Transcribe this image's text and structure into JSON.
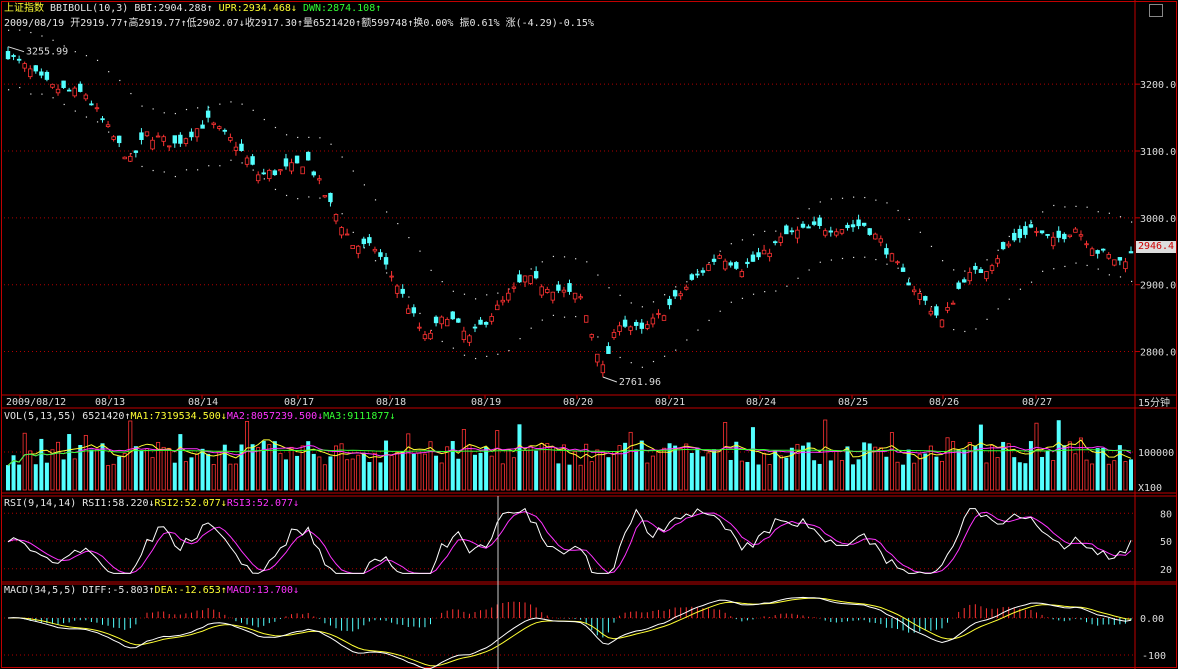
{
  "header": {
    "index_name": "上证指数",
    "indicator": "BBIBOLL(10,3)",
    "bbi": "BBI:2904.288",
    "upr": "UPR:2934.468",
    "dwn": "DWN:2874.108",
    "date": "2009/08/19",
    "open": "开2919.77",
    "high": "高2919.77",
    "low": "低2902.07",
    "close": "收2917.30",
    "volume": "量6521420",
    "amount": "额599748",
    "turnover": "换0.00%",
    "amplitude": "振0.61%",
    "change": "涨(-4.29)-0.15%"
  },
  "vol_header": {
    "name": "VOL(5,13,55)",
    "value": "6521420",
    "ma1": "MA1:7319534.500",
    "ma2": "MA2:8057239.500",
    "ma3": "MA3:9111877"
  },
  "rsi_header": {
    "name": "RSI(9,14,14)",
    "rsi1": "RSI1:58.220",
    "rsi2": "RSI2:52.077",
    "rsi3": "RSI3:52.077"
  },
  "macd_header": {
    "name": "MACD(34,5,5)",
    "diff": "DIFF:-5.803",
    "dea": "DEA:-12.653",
    "macd": "MACD:13.700"
  },
  "last_price_tag": "2946.4",
  "period_label": "15分钟",
  "chart_data": {
    "type": "candlestick",
    "price_axis": {
      "ticks": [
        3200,
        3100,
        3000,
        2900,
        2800
      ],
      "tick_labels": [
        "3200.0",
        "3100.0",
        "3000.0",
        "2900.0",
        "2800.0"
      ],
      "ylim": [
        2735,
        3275
      ]
    },
    "date_labels": [
      "2009/08/12",
      "08/13",
      "08/14",
      "08/17",
      "08/18",
      "08/19",
      "08/20",
      "08/21",
      "08/24",
      "08/25",
      "08/26",
      "08/27"
    ],
    "annotations": [
      {
        "label": "3255.99",
        "price": 3255.99
      },
      {
        "label": "2761.96",
        "price": 2761.96
      }
    ],
    "price_anchors": [
      [
        0,
        3245
      ],
      [
        8,
        3195
      ],
      [
        14,
        3185
      ],
      [
        19,
        3120
      ],
      [
        22,
        3085
      ],
      [
        25,
        3125
      ],
      [
        30,
        3110
      ],
      [
        36,
        3145
      ],
      [
        41,
        3110
      ],
      [
        45,
        3065
      ],
      [
        49,
        3070
      ],
      [
        54,
        3085
      ],
      [
        57,
        3035
      ],
      [
        62,
        2960
      ],
      [
        66,
        2955
      ],
      [
        70,
        2900
      ],
      [
        75,
        2820
      ],
      [
        79,
        2855
      ],
      [
        83,
        2820
      ],
      [
        88,
        2865
      ],
      [
        93,
        2910
      ],
      [
        98,
        2895
      ],
      [
        103,
        2880
      ],
      [
        107,
        2775
      ],
      [
        110,
        2845
      ],
      [
        114,
        2830
      ],
      [
        118,
        2860
      ],
      [
        123,
        2905
      ],
      [
        128,
        2945
      ],
      [
        132,
        2925
      ],
      [
        136,
        2945
      ],
      [
        140,
        2975
      ],
      [
        145,
        2985
      ],
      [
        150,
        2985
      ],
      [
        154,
        2990
      ],
      [
        157,
        2965
      ],
      [
        161,
        2915
      ],
      [
        165,
        2875
      ],
      [
        168,
        2845
      ],
      [
        172,
        2910
      ],
      [
        176,
        2925
      ],
      [
        180,
        2960
      ],
      [
        184,
        2985
      ],
      [
        188,
        2965
      ],
      [
        192,
        2985
      ],
      [
        196,
        2950
      ],
      [
        200,
        2935
      ],
      [
        202,
        2945
      ]
    ],
    "bollinger_width": 45,
    "volume_axis": {
      "tick_labels": [
        "100000"
      ],
      "unit": "X100"
    },
    "rsi_axis": {
      "ticks": [
        80,
        50,
        20
      ],
      "tick_labels": [
        "80",
        "50",
        "20"
      ]
    },
    "macd_axis": {
      "ticks": [
        0,
        -100
      ],
      "tick_labels": [
        "0.00",
        "-100"
      ]
    },
    "colors": {
      "up": "#ff3333",
      "down": "#54ffff",
      "ma1": "#ffffff",
      "ma2": "#ffff33",
      "ma3": "#ff33ff",
      "grid": "#b00000",
      "border": "#c00000",
      "axis_text": "#dddddd"
    }
  }
}
